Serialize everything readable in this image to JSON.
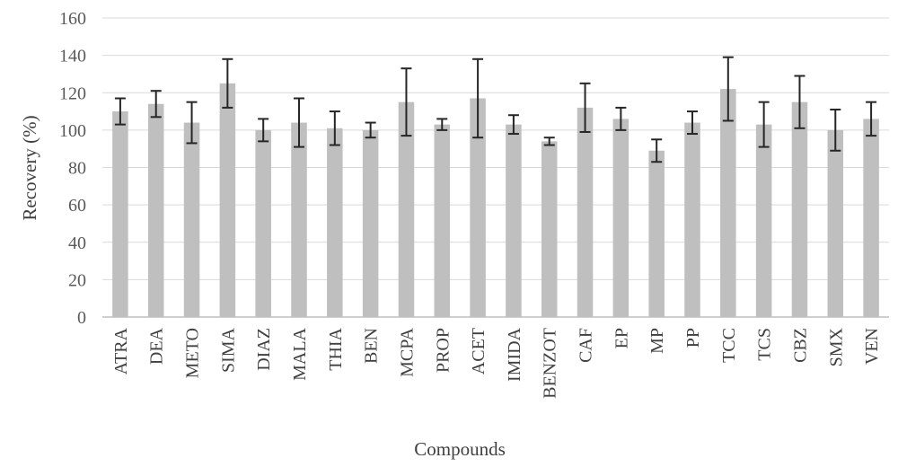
{
  "chart_data": {
    "type": "bar",
    "xlabel": "Compounds",
    "ylabel": "Recovery (%)",
    "ylim": [
      0,
      160
    ],
    "yticks": [
      0,
      20,
      40,
      60,
      80,
      100,
      120,
      140,
      160
    ],
    "grid": true,
    "categories": [
      "ATRA",
      "DEA",
      "METO",
      "SIMA",
      "DIAZ",
      "MALA",
      "THIA",
      "BEN",
      "MCPA",
      "PROP",
      "ACET",
      "IMIDA",
      "BENZOT",
      "CAF",
      "EP",
      "MP",
      "PP",
      "TCC",
      "TCS",
      "CBZ",
      "SMX",
      "VEN"
    ],
    "values": [
      110,
      114,
      104,
      125,
      100,
      104,
      101,
      100,
      115,
      103,
      117,
      103,
      94,
      112,
      106,
      89,
      104,
      122,
      103,
      115,
      100,
      106
    ],
    "errors": [
      7,
      7,
      11,
      13,
      6,
      13,
      9,
      4,
      18,
      3,
      21,
      5,
      2,
      13,
      6,
      6,
      6,
      17,
      12,
      14,
      11,
      9
    ],
    "colors": {
      "bar": "#bfbfbf",
      "error_bar": "#262626",
      "grid": "#d9d9d9"
    }
  }
}
